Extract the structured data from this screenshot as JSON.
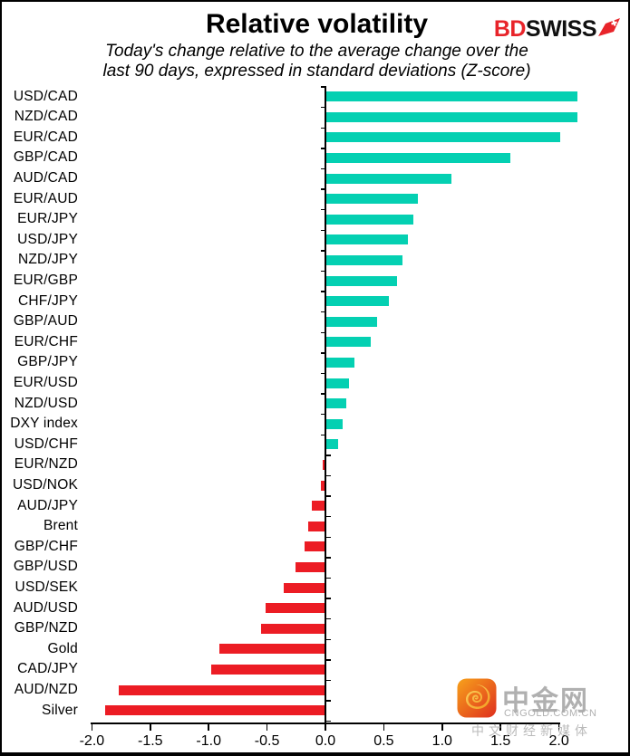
{
  "header": {
    "title": "Relative volatility",
    "subtitle_line1": "Today's change relative to the average change over the",
    "subtitle_line2": "last 90 days, expressed in standard deviations (Z-score)",
    "logo": {
      "part1": "BD",
      "part2": "SWISS",
      "icon": "bdswiss-arrow-flag-icon"
    }
  },
  "chart_data": {
    "type": "bar",
    "orientation": "horizontal",
    "title": "Relative volatility",
    "subtitle": "Today's change relative to the average change over the last 90 days, expressed in standard deviations (Z-score)",
    "xlabel": "",
    "ylabel": "",
    "xlim": [
      -2.0,
      2.2
    ],
    "grid": false,
    "legend": "none",
    "positive_color": "#04D0B2",
    "negative_color": "#EC1C24",
    "x_tick_labels": [
      "-2.0",
      "-1.5",
      "-1.0",
      "-0.5",
      "0.0",
      "0.5",
      "1.0",
      "1.5",
      "2.0"
    ],
    "categories": [
      "USD/CAD",
      "NZD/CAD",
      "EUR/CAD",
      "GBP/CAD",
      "AUD/CAD",
      "EUR/AUD",
      "EUR/JPY",
      "USD/JPY",
      "NZD/JPY",
      "EUR/GBP",
      "CHF/JPY",
      "GBP/AUD",
      "EUR/CHF",
      "GBP/JPY",
      "EUR/USD",
      "NZD/USD",
      "DXY index",
      "USD/CHF",
      "EUR/NZD",
      "USD/NOK",
      "AUD/JPY",
      "Brent",
      "GBP/CHF",
      "GBP/USD",
      "USD/SEK",
      "AUD/USD",
      "GBP/NZD",
      "Gold",
      "CAD/JPY",
      "AUD/NZD",
      "Silver"
    ],
    "values": [
      2.16,
      2.16,
      2.01,
      1.58,
      1.08,
      0.79,
      0.75,
      0.71,
      0.66,
      0.61,
      0.54,
      0.44,
      0.39,
      0.25,
      0.2,
      0.18,
      0.15,
      0.11,
      -0.02,
      -0.04,
      -0.12,
      -0.15,
      -0.18,
      -0.26,
      -0.36,
      -0.51,
      -0.55,
      -0.91,
      -0.98,
      -1.77,
      -1.89
    ]
  },
  "watermark": {
    "badge_icon": "cngold-swirl-badge-icon",
    "site_name": "中金网",
    "domain": "CNGOLD.COM.CN",
    "tagline": "中文财经新媒体"
  }
}
